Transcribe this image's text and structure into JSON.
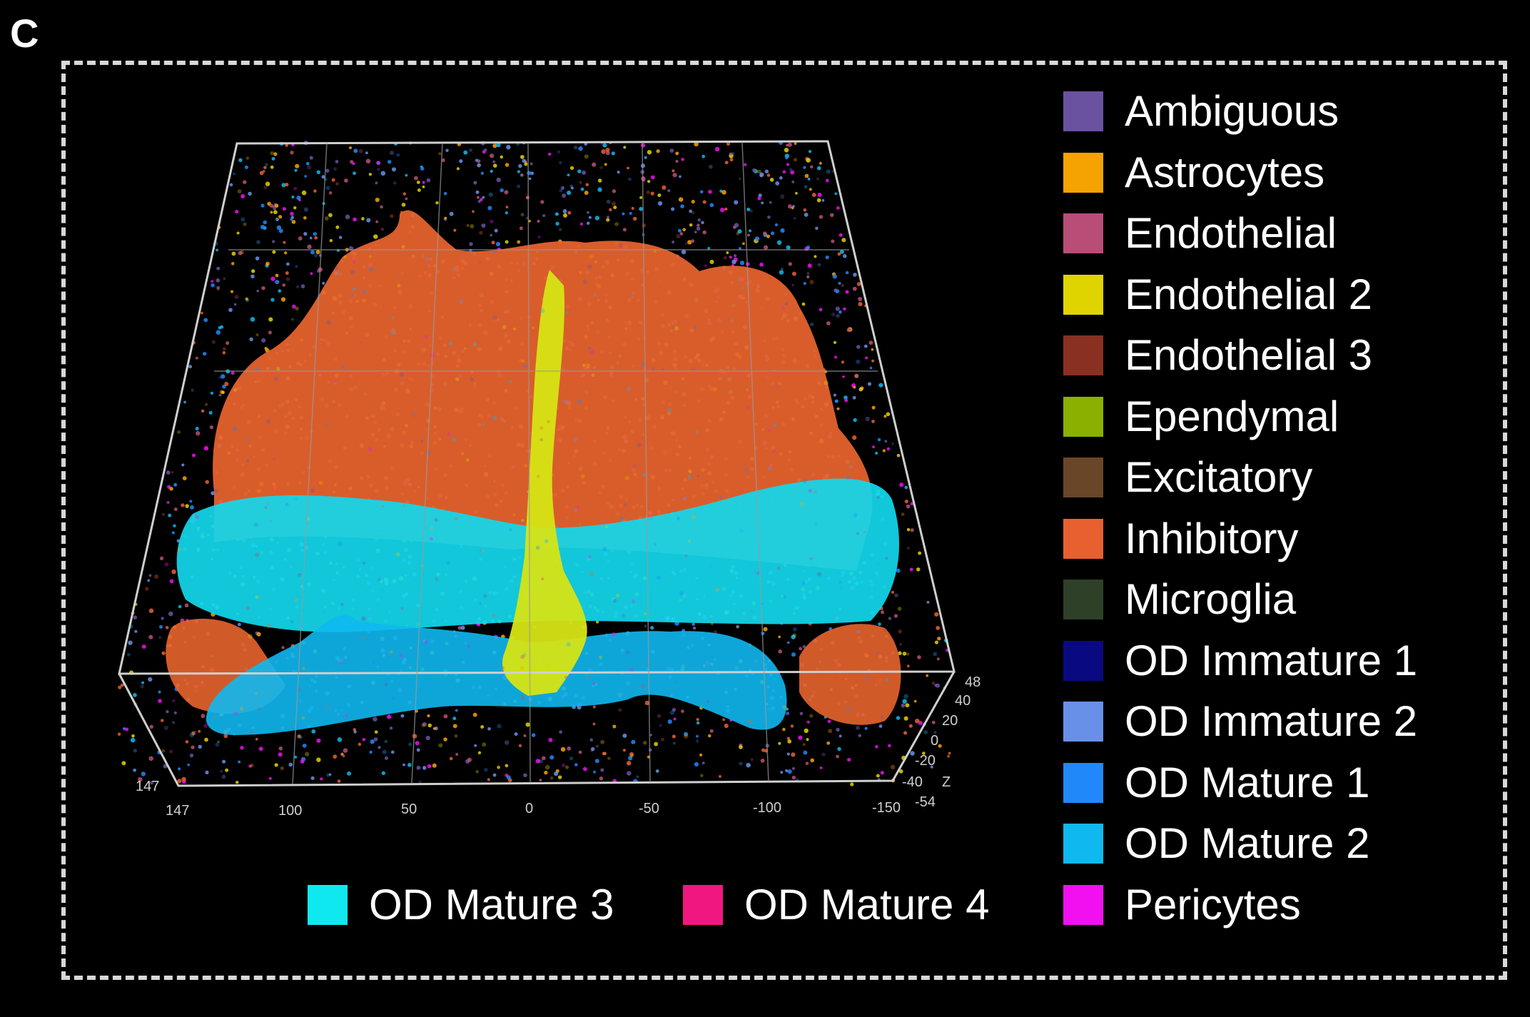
{
  "panel_label": "C",
  "axes": {
    "x_ticks": [
      "147",
      "100",
      "50",
      "0",
      "-50",
      "-100",
      "-150"
    ],
    "y_ticks": [
      "147",
      "-54"
    ],
    "z_ticks": [
      "48",
      "40",
      "20",
      "0",
      "-20",
      "-40"
    ],
    "z_label": "Z"
  },
  "legend": [
    {
      "label": "Ambiguous",
      "color": "#6a52a0"
    },
    {
      "label": "Astrocytes",
      "color": "#f5a300"
    },
    {
      "label": "Endothelial",
      "color": "#b84d78"
    },
    {
      "label": "Endothelial 2",
      "color": "#e0d400"
    },
    {
      "label": "Endothelial 3",
      "color": "#8a3020"
    },
    {
      "label": "Ependymal",
      "color": "#8ab000"
    },
    {
      "label": "Excitatory",
      "color": "#6a4628"
    },
    {
      "label": "Inhibitory",
      "color": "#e86030"
    },
    {
      "label": "Microglia",
      "color": "#2e4028"
    },
    {
      "label": "OD Immature 1",
      "color": "#0a0a80"
    },
    {
      "label": "OD Immature 2",
      "color": "#6890e8"
    },
    {
      "label": "OD Mature 1",
      "color": "#2088f8"
    },
    {
      "label": "OD Mature 2",
      "color": "#10b8f0"
    },
    {
      "label": "Pericytes",
      "color": "#f010f0"
    }
  ],
  "legend_bottom": [
    {
      "label": "OD Mature 3",
      "color": "#10e8f0"
    },
    {
      "label": "OD Mature 4",
      "color": "#f01880"
    }
  ]
}
